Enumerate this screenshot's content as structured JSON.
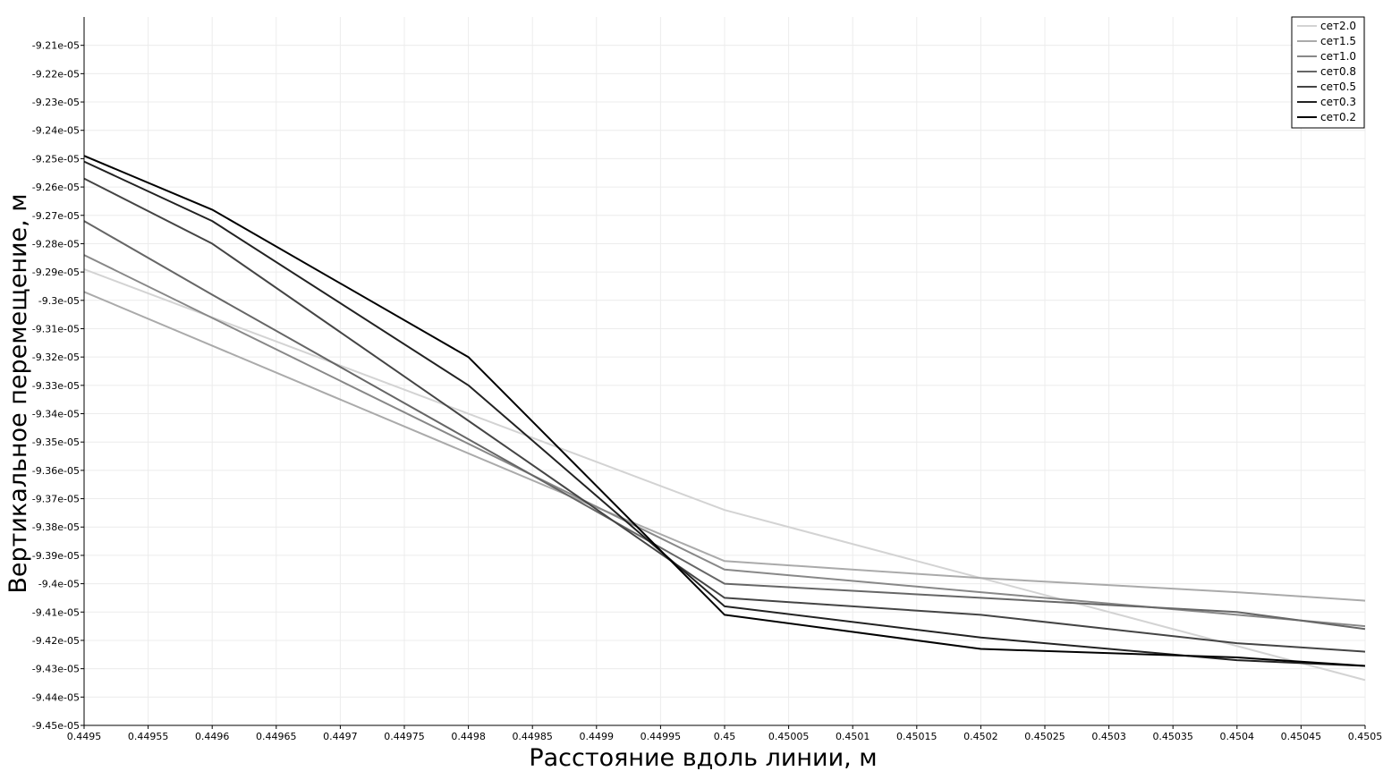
{
  "chart_data": {
    "type": "line",
    "title": "",
    "xlabel": "Расстояние вдоль линии, м",
    "ylabel": "Вертикальное перемещение, м",
    "xlim": [
      0.4495,
      0.4505
    ],
    "ylim": [
      -9.45e-05,
      -9.2e-05
    ],
    "x_ticks": [
      "0.4495",
      "0.44955",
      "0.4496",
      "0.44965",
      "0.4497",
      "0.44975",
      "0.4498",
      "0.44985",
      "0.4499",
      "0.44995",
      "0.45",
      "0.45005",
      "0.4501",
      "0.45015",
      "0.4502",
      "0.45025",
      "0.4503",
      "0.45035",
      "0.4504",
      "0.45045",
      "0.4505"
    ],
    "y_ticks": [
      "-9.21e-05",
      "-9.22e-05",
      "-9.23e-05",
      "-9.24e-05",
      "-9.25e-05",
      "-9.26e-05",
      "-9.27e-05",
      "-9.28e-05",
      "-9.29e-05",
      "-9.3e-05",
      "-9.31e-05",
      "-9.32e-05",
      "-9.33e-05",
      "-9.34e-05",
      "-9.35e-05",
      "-9.36e-05",
      "-9.37e-05",
      "-9.38e-05",
      "-9.39e-05",
      "-9.4e-05",
      "-9.41e-05",
      "-9.42e-05",
      "-9.43e-05",
      "-9.44e-05",
      "-9.45e-05"
    ],
    "grid": true,
    "legend_position": "top-right",
    "series": [
      {
        "name": "сет2.0",
        "color": "#d3d3d3",
        "x": [
          0.4495,
          0.45,
          0.4505
        ],
        "y": [
          -9.289e-05,
          -9.374e-05,
          -9.434e-05
        ]
      },
      {
        "name": "сет1.5",
        "color": "#aaaaaa",
        "x": [
          0.4495,
          0.45,
          0.4502,
          0.4504,
          0.4505
        ],
        "y": [
          -9.297e-05,
          -9.392e-05,
          -9.398e-05,
          -9.403e-05,
          -9.406e-05
        ]
      },
      {
        "name": "сет1.0",
        "color": "#888888",
        "x": [
          0.4495,
          0.45,
          0.4502,
          0.4504,
          0.4505
        ],
        "y": [
          -9.284e-05,
          -9.395e-05,
          -9.403e-05,
          -9.411e-05,
          -9.415e-05
        ]
      },
      {
        "name": "сет0.8",
        "color": "#666666",
        "x": [
          0.4495,
          0.4496,
          0.45,
          0.4502,
          0.4504,
          0.4505
        ],
        "y": [
          -9.272e-05,
          -9.298e-05,
          -9.4e-05,
          -9.405e-05,
          -9.41e-05,
          -9.416e-05
        ]
      },
      {
        "name": "сет0.5",
        "color": "#444444",
        "x": [
          0.4495,
          0.4496,
          0.45,
          0.4502,
          0.4504,
          0.4505
        ],
        "y": [
          -9.257e-05,
          -9.28e-05,
          -9.405e-05,
          -9.411e-05,
          -9.421e-05,
          -9.424e-05
        ]
      },
      {
        "name": "сет0.3",
        "color": "#222222",
        "x": [
          0.4495,
          0.4496,
          0.4498,
          0.45,
          0.4502,
          0.4504,
          0.4505
        ],
        "y": [
          -9.251e-05,
          -9.272e-05,
          -9.33e-05,
          -9.408e-05,
          -9.419e-05,
          -9.427e-05,
          -9.429e-05
        ]
      },
      {
        "name": "сет0.2",
        "color": "#000000",
        "x": [
          0.4495,
          0.4496,
          0.4498,
          0.45,
          0.4502,
          0.4504,
          0.4505
        ],
        "y": [
          -9.249e-05,
          -9.268e-05,
          -9.32e-05,
          -9.411e-05,
          -9.423e-05,
          -9.426e-05,
          -9.429e-05
        ]
      }
    ]
  }
}
